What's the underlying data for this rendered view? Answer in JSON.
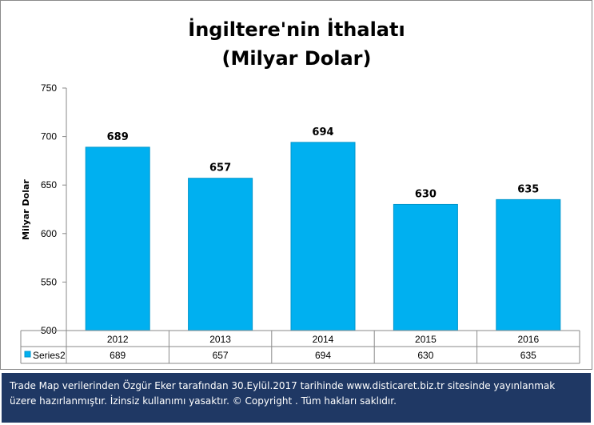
{
  "chart_data": {
    "type": "bar",
    "title_lines": [
      "İngiltere'nin İthalatı",
      "(Milyar Dolar)"
    ],
    "ylabel": "Milyar Dolar",
    "categories": [
      "2012",
      "2013",
      "2014",
      "2015",
      "2016"
    ],
    "series": [
      {
        "name": "Series2",
        "values": [
          689,
          657,
          694,
          630,
          635
        ]
      }
    ],
    "ylim": [
      500,
      750
    ],
    "yticks": [
      500,
      550,
      600,
      650,
      700,
      750
    ],
    "data_labels": true,
    "data_table": true,
    "grid": false,
    "legend": "data-table",
    "colors": {
      "bar": "#00b0f0",
      "bar_edge": "#0096cc",
      "axis": "#8a8a8a",
      "footer_bg": "#1f3864"
    }
  },
  "footer": {
    "line1": "Trade Map verilerinden Özgür Eker tarafından 30.Eylül.2017  tarihinde www.disticaret.biz.tr  sitesinde yayınlanmak",
    "line2": "üzere hazırlanmıştır. İzinsiz kullanımı yasaktır. © Copyright . Tüm hakları saklıdır."
  }
}
